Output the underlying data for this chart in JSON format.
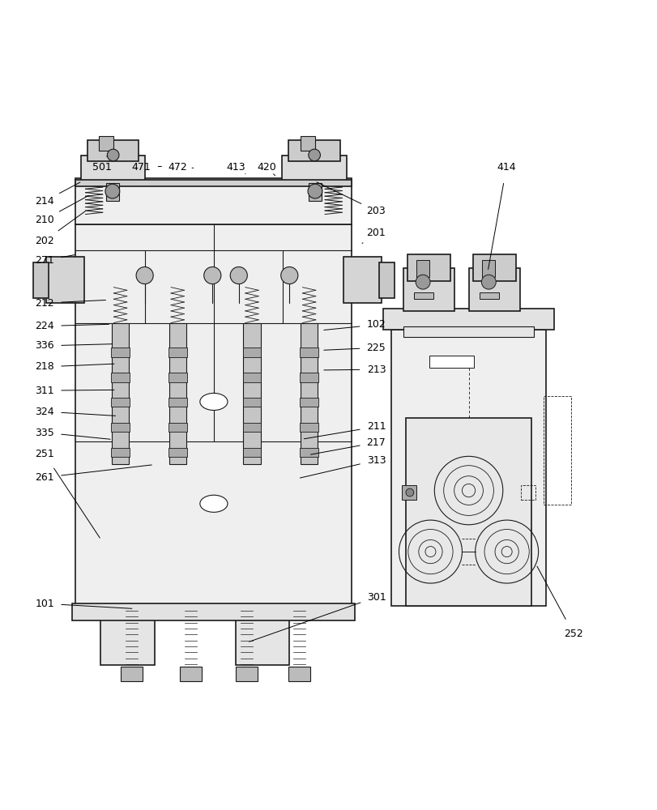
{
  "background_color": "#ffffff",
  "figure_width": 8.12,
  "figure_height": 10.0,
  "dpi": 100,
  "line_color": "#1a1a1a",
  "text_color": "#000000",
  "font_size": 9
}
